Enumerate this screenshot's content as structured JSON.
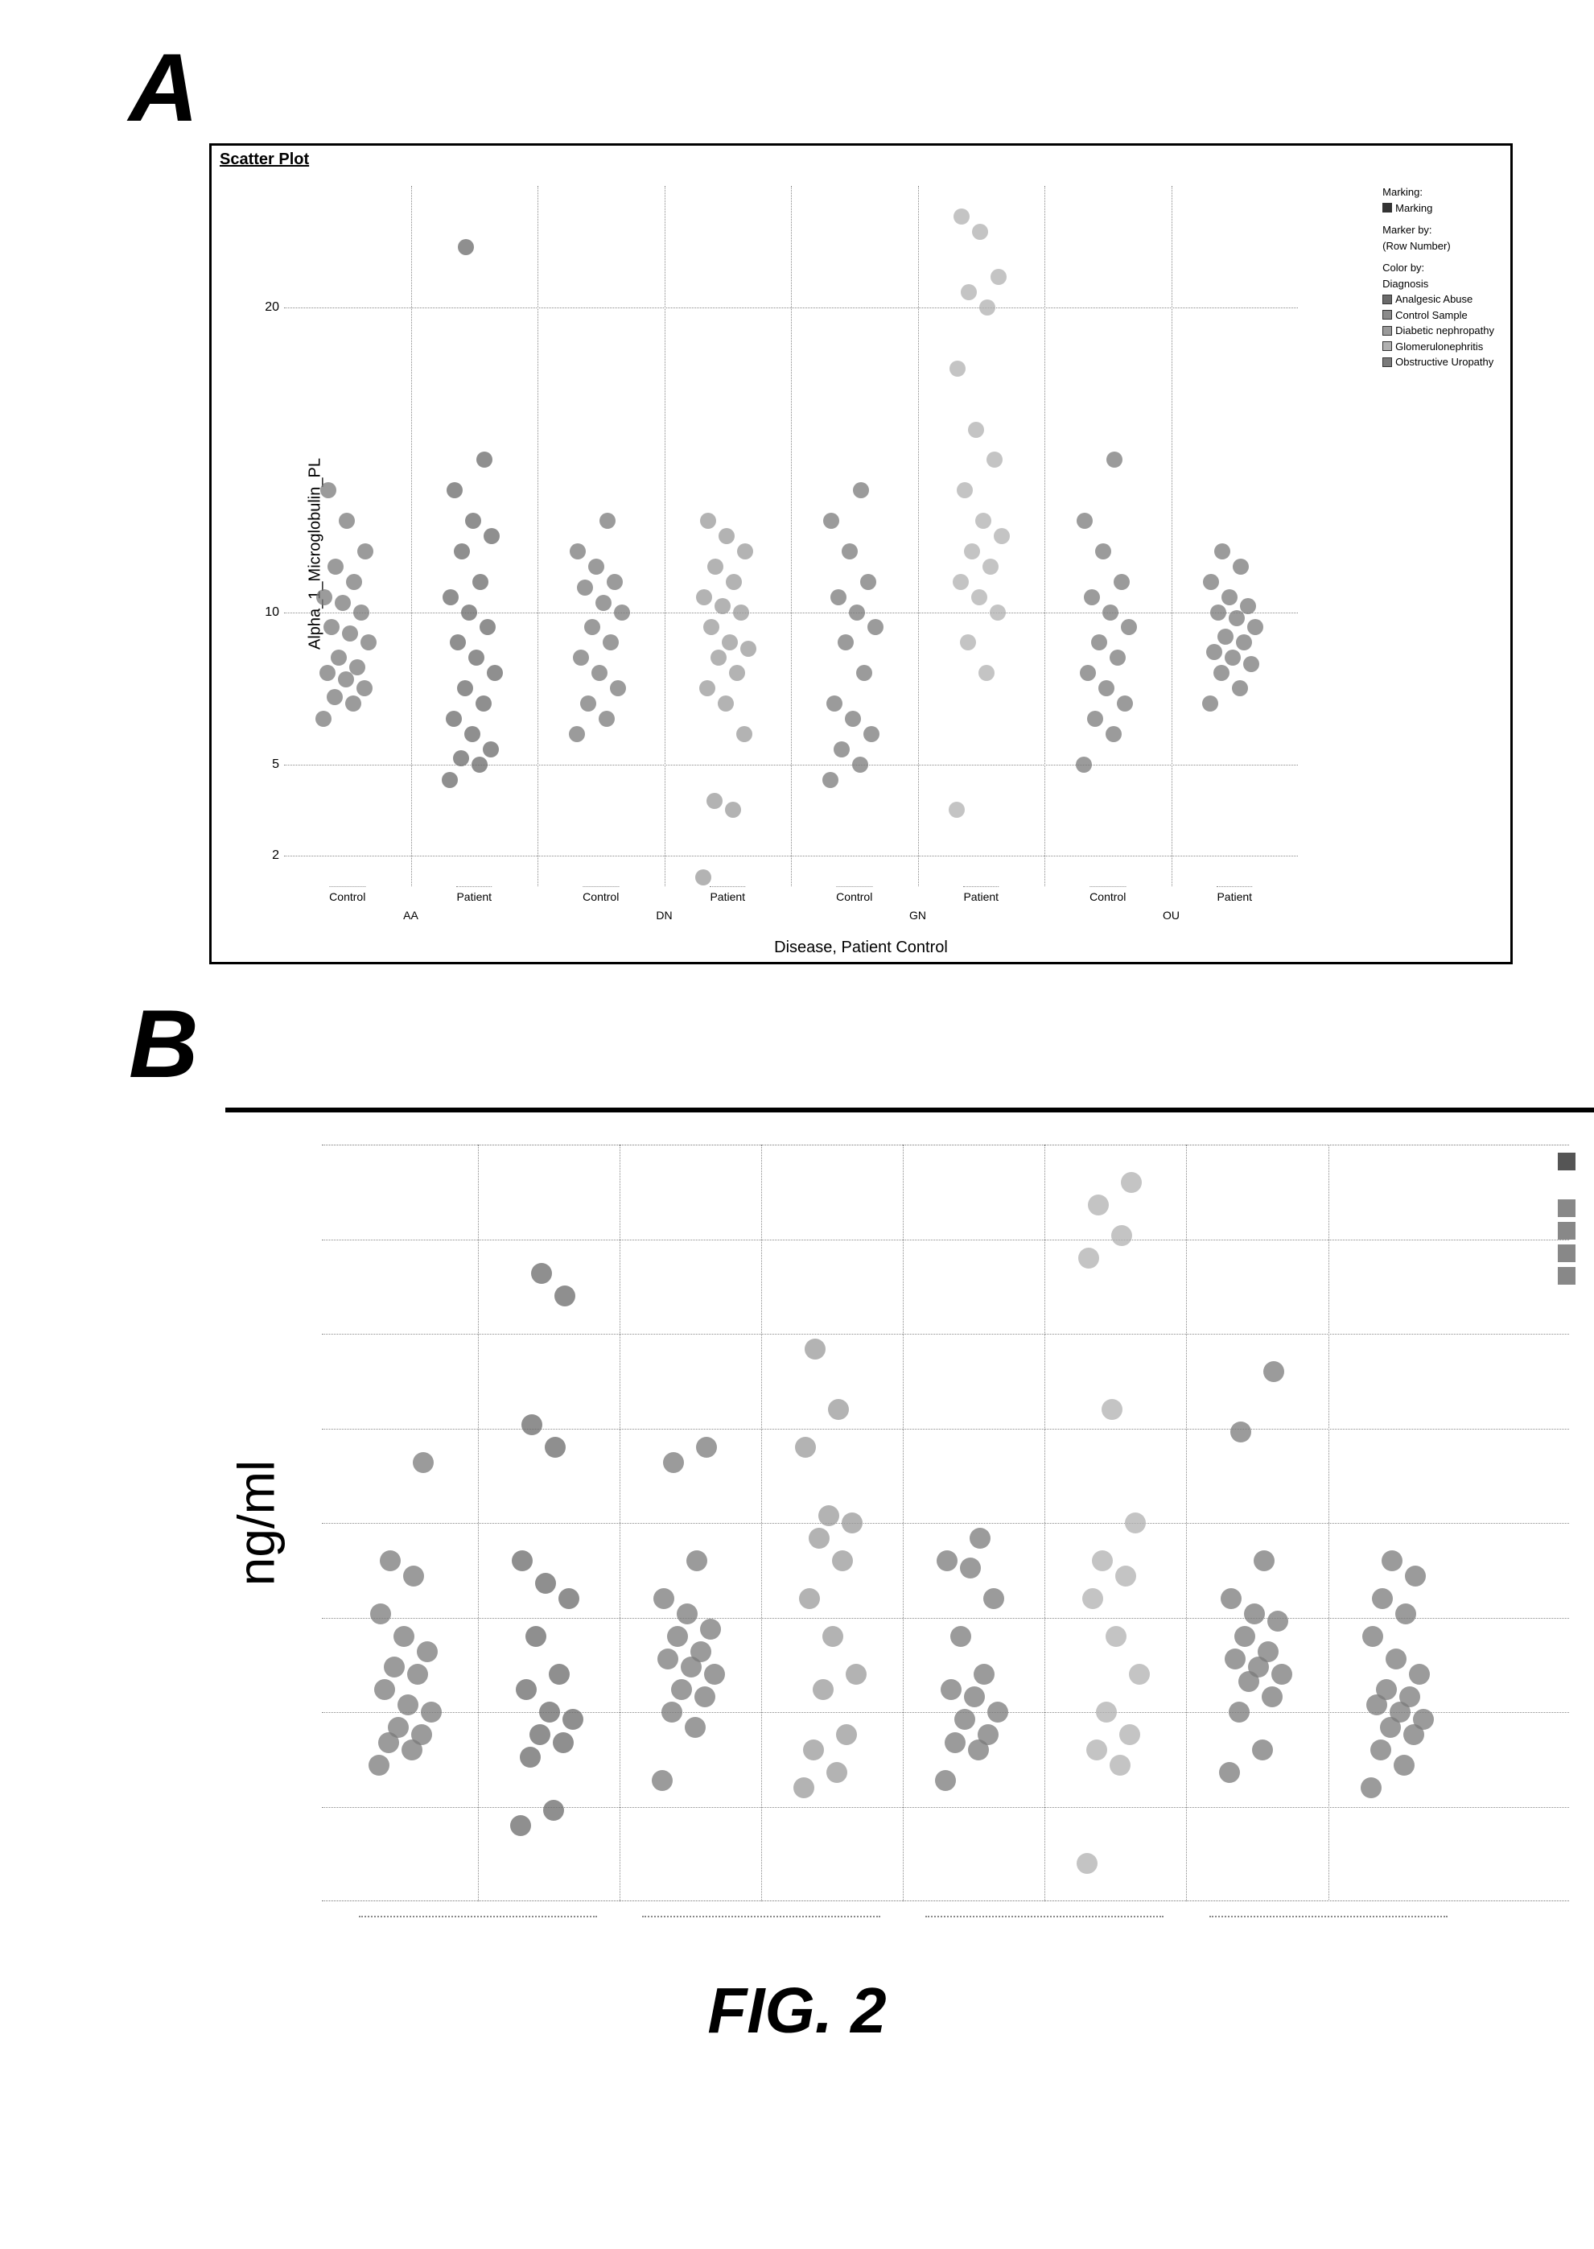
{
  "figure_label": "FIG. 2",
  "panelA": {
    "letter": "A",
    "title": "Scatter Plot",
    "ylabel": "Alpha_1_Microglobulin_PL",
    "xlabel": "Disease, Patient Control",
    "type": "scatter",
    "ylim": [
      1,
      24
    ],
    "yticks": [
      2,
      5,
      10,
      20
    ],
    "groups": [
      "AA",
      "DN",
      "GN",
      "OU"
    ],
    "subgroups": [
      "Control",
      "Patient"
    ],
    "marker_size": 20,
    "background_color": "#ffffff",
    "grid_color": "#888888",
    "legend": {
      "marking_head": "Marking:",
      "marking_item": "Marking",
      "marker_by_head": "Marker by:",
      "marker_by_item": "(Row Number)",
      "color_by_head": "Color by:",
      "color_by_label": "Diagnosis",
      "items": [
        {
          "label": "Analgesic Abuse",
          "color": "#6a6a6a"
        },
        {
          "label": "Control Sample",
          "color": "#8a8a8a"
        },
        {
          "label": "Diabetic nephropathy",
          "color": "#9a9a9a"
        },
        {
          "label": "Glomerulonephritis",
          "color": "#b0b0b0"
        },
        {
          "label": "Obstructive Uropathy",
          "color": "#7a7a7a"
        }
      ]
    },
    "series": [
      {
        "col": 0,
        "color": "#7a7a7a",
        "y": [
          6.5,
          7,
          7.2,
          7.5,
          7.8,
          8,
          8.2,
          8.5,
          9,
          9.3,
          9.5,
          10,
          10.3,
          10.5,
          11,
          11.5,
          12,
          13,
          14
        ]
      },
      {
        "col": 1,
        "color": "#6a6a6a",
        "y": [
          4.5,
          5,
          5.2,
          5.5,
          6,
          6.5,
          7,
          7.5,
          8,
          8.5,
          9,
          9.5,
          10,
          10.5,
          11,
          12,
          12.5,
          13,
          14,
          15,
          22
        ]
      },
      {
        "col": 2,
        "color": "#7a7a7a",
        "y": [
          6,
          6.5,
          7,
          7.5,
          8,
          8.5,
          9,
          9.5,
          10,
          10.3,
          10.8,
          11,
          11.5,
          12,
          13
        ]
      },
      {
        "col": 3,
        "color": "#9a9a9a",
        "y": [
          1.3,
          3.5,
          3.8,
          6,
          7,
          7.5,
          8,
          8.5,
          8.8,
          9,
          9.5,
          10,
          10.2,
          10.5,
          11,
          11.5,
          12,
          12.5,
          13
        ]
      },
      {
        "col": 4,
        "color": "#7a7a7a",
        "y": [
          4.5,
          5,
          5.5,
          6,
          6.5,
          7,
          8,
          9,
          9.5,
          10,
          10.5,
          11,
          12,
          13,
          14
        ]
      },
      {
        "col": 5,
        "color": "#b0b0b0",
        "y": [
          3.5,
          8,
          9,
          10,
          10.5,
          11,
          11.5,
          12,
          12.5,
          13,
          14,
          15,
          16,
          18,
          20,
          20.5,
          21,
          22.5,
          23
        ]
      },
      {
        "col": 6,
        "color": "#7a7a7a",
        "y": [
          5,
          6,
          6.5,
          7,
          7.5,
          8,
          8.5,
          9,
          9.5,
          10,
          10.5,
          11,
          12,
          13,
          15
        ]
      },
      {
        "col": 7,
        "color": "#7a7a7a",
        "y": [
          7,
          7.5,
          8,
          8.3,
          8.5,
          8.7,
          9,
          9.2,
          9.5,
          9.8,
          10,
          10.2,
          10.5,
          11,
          11.5,
          12
        ]
      }
    ]
  },
  "panelB": {
    "letter": "B",
    "ylabel": "ng/ml",
    "type": "scatter",
    "ylim": [
      0,
      10
    ],
    "yticks_major": [
      2.5,
      5,
      7.5
    ],
    "yticks_minor": [
      1.25,
      3.75,
      6.25,
      8.75
    ],
    "marker_size": 26,
    "background_color": "#ffffff",
    "grid_color": "#888888",
    "columns": 8,
    "right_legend_colors": [
      "#555555",
      "#888888",
      "#888888",
      "#888888",
      "#888888"
    ],
    "series": [
      {
        "col": 0,
        "color": "#7a7a7a",
        "y": [
          1.8,
          2,
          2.1,
          2.2,
          2.3,
          2.5,
          2.6,
          2.8,
          3,
          3.1,
          3.3,
          3.5,
          3.8,
          4.3,
          4.5,
          5.8
        ]
      },
      {
        "col": 1,
        "color": "#6a6a6a",
        "y": [
          1,
          1.2,
          1.9,
          2.1,
          2.2,
          2.4,
          2.5,
          2.8,
          3,
          3.5,
          4,
          4.2,
          4.5,
          6,
          6.3,
          8,
          8.3
        ]
      },
      {
        "col": 2,
        "color": "#7a7a7a",
        "y": [
          1.6,
          2.3,
          2.5,
          2.7,
          2.8,
          3,
          3.1,
          3.2,
          3.3,
          3.5,
          3.6,
          3.8,
          4,
          4.5,
          5.8,
          6
        ]
      },
      {
        "col": 3,
        "color": "#9a9a9a",
        "y": [
          1.5,
          1.7,
          2,
          2.2,
          2.8,
          3,
          3.5,
          4,
          4.5,
          4.8,
          5,
          5.1,
          6,
          6.5,
          7.3
        ]
      },
      {
        "col": 4,
        "color": "#7a7a7a",
        "y": [
          1.6,
          2,
          2.1,
          2.2,
          2.4,
          2.5,
          2.7,
          2.8,
          3,
          3.5,
          4,
          4.4,
          4.5,
          4.8
        ]
      },
      {
        "col": 5,
        "color": "#b0b0b0",
        "y": [
          0.5,
          1.8,
          2,
          2.2,
          2.5,
          3,
          3.5,
          4,
          4.3,
          4.5,
          5,
          6.5,
          8.5,
          8.8,
          9.2,
          9.5
        ]
      },
      {
        "col": 6,
        "color": "#7a7a7a",
        "y": [
          1.7,
          2,
          2.5,
          2.7,
          2.9,
          3,
          3.1,
          3.2,
          3.3,
          3.5,
          3.7,
          3.8,
          4,
          4.5,
          6.2,
          7
        ]
      },
      {
        "col": 7,
        "color": "#7a7a7a",
        "y": [
          1.5,
          1.8,
          2,
          2.2,
          2.3,
          2.4,
          2.5,
          2.6,
          2.7,
          2.8,
          3,
          3.2,
          3.5,
          3.8,
          4,
          4.3,
          4.5
        ]
      }
    ]
  }
}
